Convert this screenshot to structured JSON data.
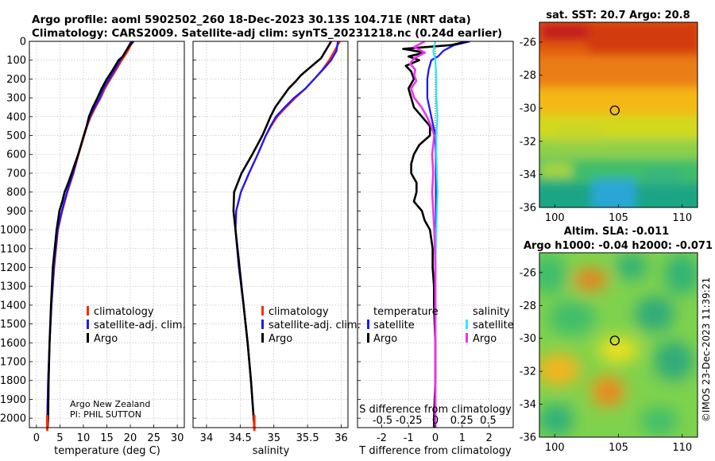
{
  "title": {
    "line1": "Argo profile: aoml 5902502_260 18-Dec-2023 30.13S 104.71E (NRT data)",
    "line2": "Climatology: CARS2009. Satellite-adj clim: synTS_20231218.nc (0.24d earlier)"
  },
  "credits": {
    "agency": "Argo New Zealand",
    "pi": "PI: PHIL SUTTON",
    "imos": "©IMOS 23-Dec-2023 11:39:21"
  },
  "colors": {
    "climatology": "#ff2a00",
    "satellite": "#1a1aff",
    "argo": "#000000",
    "sat_salinity": "#33e6f0",
    "argo_salinity": "#ee33ee",
    "marker": "#000000"
  },
  "legend": {
    "climatology": "climatology",
    "satellite_adj": "satellite-adj. clim.",
    "argo": "Argo",
    "temperature_hdr": "temperature",
    "salinity_hdr": "salinity",
    "satellite": "satellite"
  },
  "chart_data": [
    {
      "type": "line",
      "id": "temperature",
      "xlabel": "temperature (deg C)",
      "ylabel": "",
      "xlim": [
        -1.5,
        31.5
      ],
      "ylim": [
        2050,
        0
      ],
      "x_ticks": [
        0,
        5,
        10,
        15,
        20,
        25,
        30
      ],
      "y_ticks": [
        0,
        100,
        200,
        300,
        400,
        500,
        600,
        700,
        800,
        900,
        1000,
        1100,
        1200,
        1300,
        1400,
        1500,
        1600,
        1700,
        1800,
        1900,
        2000
      ],
      "series": [
        {
          "name": "climatology",
          "depth": [
            0,
            50,
            100,
            150,
            200,
            250,
            300,
            350,
            400,
            450,
            500,
            600,
            700,
            800,
            900,
            1000,
            1200,
            1400,
            1600,
            1800,
            2000,
            2050
          ],
          "values": [
            20.5,
            19.5,
            18.2,
            17.0,
            15.8,
            14.6,
            13.7,
            12.6,
            11.6,
            10.8,
            10.2,
            9.0,
            7.9,
            6.6,
            5.5,
            4.6,
            3.8,
            3.2,
            2.8,
            2.5,
            2.3,
            2.3
          ]
        },
        {
          "name": "satellite-adj. clim.",
          "depth": [
            0,
            50,
            100,
            150,
            200,
            250,
            300,
            350,
            400,
            450,
            500,
            600,
            700,
            800,
            900,
            1000,
            1200,
            1400,
            1600,
            1800,
            2000,
            2050
          ],
          "values": [
            20.2,
            19.1,
            17.9,
            16.7,
            15.5,
            14.3,
            13.5,
            12.4,
            11.4,
            10.7,
            10.1,
            8.9,
            7.8,
            6.5,
            5.4,
            4.5,
            3.7,
            3.2,
            2.8,
            2.5,
            2.3,
            2.3
          ]
        },
        {
          "name": "Argo",
          "depth": [
            0,
            20,
            50,
            80,
            100,
            150,
            200,
            250,
            300,
            350,
            400,
            450,
            500,
            550,
            600,
            650,
            700,
            750,
            800,
            850,
            900,
            1000,
            1100,
            1200,
            1400,
            1600,
            1800,
            2000,
            2050
          ],
          "values": [
            20.7,
            19.9,
            19.1,
            18.4,
            17.5,
            16.3,
            15.0,
            13.9,
            13.0,
            12.0,
            11.2,
            10.7,
            10.1,
            9.5,
            8.9,
            8.2,
            7.5,
            6.8,
            6.0,
            5.5,
            4.9,
            4.3,
            3.9,
            3.5,
            3.1,
            2.8,
            2.6,
            2.5,
            2.4
          ]
        }
      ]
    },
    {
      "type": "line",
      "id": "salinity",
      "xlabel": "salinity",
      "xlim": [
        33.8,
        36.1
      ],
      "ylim": [
        2050,
        0
      ],
      "x_ticks": [
        34,
        34.5,
        35,
        35.5,
        36
      ],
      "x_tick_labels": [
        "34",
        "34.5",
        "35",
        "35.5",
        "36"
      ],
      "series": [
        {
          "name": "climatology",
          "depth": [
            0,
            50,
            100,
            150,
            200,
            250,
            300,
            350,
            400,
            450,
            500,
            600,
            700,
            800,
            900,
            1000,
            1200,
            1400,
            1600,
            1800,
            2000,
            2050
          ],
          "values": [
            35.98,
            35.9,
            35.82,
            35.72,
            35.6,
            35.47,
            35.32,
            35.18,
            35.05,
            34.96,
            34.88,
            34.76,
            34.63,
            34.51,
            34.44,
            34.43,
            34.48,
            34.55,
            34.61,
            34.66,
            34.7,
            34.71
          ]
        },
        {
          "name": "satellite-adj. clim.",
          "depth": [
            0,
            50,
            100,
            150,
            200,
            250,
            300,
            350,
            400,
            450,
            500,
            600,
            700,
            800,
            900,
            1000,
            1200,
            1400,
            1600,
            1800,
            2000,
            2050
          ],
          "values": [
            35.95,
            35.93,
            35.85,
            35.73,
            35.6,
            35.47,
            35.3,
            35.16,
            35.03,
            34.95,
            34.88,
            34.76,
            34.63,
            34.51,
            34.44,
            34.43,
            34.48,
            34.55,
            34.61,
            34.66,
            34.7,
            34.71
          ]
        },
        {
          "name": "Argo",
          "depth": [
            0,
            30,
            60,
            90,
            120,
            150,
            180,
            210,
            250,
            300,
            350,
            400,
            450,
            500,
            600,
            700,
            800,
            900,
            1000,
            1100,
            1200,
            1400,
            1600,
            1800,
            2000,
            2050
          ],
          "values": [
            35.85,
            35.8,
            35.75,
            35.7,
            35.6,
            35.5,
            35.4,
            35.33,
            35.22,
            35.12,
            35.02,
            34.95,
            34.89,
            34.83,
            34.68,
            34.52,
            34.41,
            34.4,
            34.43,
            34.46,
            34.49,
            34.55,
            34.61,
            34.66,
            34.7,
            34.71
          ]
        }
      ]
    },
    {
      "type": "line",
      "id": "difference",
      "xlabel": "T difference from climatology",
      "xlabel2": "S difference from climatology",
      "xlim": [
        -2.9,
        2.9
      ],
      "ylim": [
        2050,
        0
      ],
      "x_ticks": [
        -2,
        -1,
        0,
        1,
        2
      ],
      "x2_ticks": [
        -0.5,
        -0.25,
        0,
        0.25,
        0.5
      ],
      "x2_tick_labels": [
        "-0.5",
        "-0.25",
        "0",
        "0.25",
        "0.5"
      ],
      "series": [
        {
          "name": "temperature satellite",
          "depth": [
            0,
            20,
            50,
            80,
            100,
            150,
            200,
            300,
            400,
            500,
            600,
            800,
            1000,
            1200,
            1600,
            2000,
            2050
          ],
          "values": [
            1.3,
            0.7,
            0.3,
            0.1,
            -0.15,
            -0.25,
            -0.3,
            -0.3,
            -0.15,
            0,
            0.02,
            0.02,
            0.02,
            0,
            0,
            0,
            0
          ]
        },
        {
          "name": "temperature Argo",
          "depth": [
            0,
            20,
            40,
            60,
            80,
            100,
            130,
            160,
            200,
            250,
            300,
            350,
            400,
            450,
            500,
            550,
            600,
            650,
            700,
            750,
            800,
            850,
            900,
            950,
            1000,
            1100,
            1200,
            1300,
            1400,
            1600,
            1800,
            2000,
            2050
          ],
          "values": [
            1.2,
            0.6,
            -1.2,
            -0.4,
            -1.0,
            -0.6,
            -1.1,
            -0.9,
            -0.8,
            -1.0,
            -0.9,
            -0.8,
            -0.5,
            -0.2,
            -0.2,
            -0.6,
            -0.8,
            -0.9,
            -0.9,
            -0.7,
            -0.7,
            -0.8,
            -0.5,
            -0.4,
            -0.2,
            -0.1,
            -0.1,
            -0.05,
            -0.05,
            0,
            0,
            -0.05,
            -0.05
          ]
        },
        {
          "name": "salinity satellite",
          "depth": [
            0,
            50,
            100,
            200,
            300,
            400,
            500,
            600,
            800,
            1000,
            1200,
            2000,
            2050
          ],
          "values": [
            0,
            -0.02,
            0,
            0.01,
            0.01,
            0.02,
            0.01,
            0.01,
            0.02,
            0.01,
            0,
            0,
            0
          ]
        },
        {
          "name": "salinity Argo",
          "depth": [
            0,
            30,
            60,
            90,
            120,
            150,
            180,
            210,
            250,
            300,
            350,
            400,
            450,
            500,
            600,
            700,
            800,
            900,
            1000,
            1200,
            1400,
            1600,
            1800,
            2000,
            2050
          ],
          "values": [
            -0.1,
            -0.2,
            -0.1,
            -0.2,
            -0.24,
            -0.19,
            -0.2,
            -0.18,
            -0.23,
            -0.2,
            -0.13,
            -0.08,
            -0.04,
            -0.01,
            -0.03,
            -0.02,
            -0.03,
            -0.02,
            -0.01,
            0,
            0,
            0,
            0,
            0,
            0
          ]
        }
      ]
    },
    {
      "type": "heatmap",
      "id": "sst_map",
      "title": "sat. SST: 20.7 Argo: 20.8",
      "xlim": [
        98.8,
        111.2
      ],
      "ylim": [
        -36,
        -24.8
      ],
      "x_ticks": [
        100,
        105,
        110
      ],
      "y_ticks": [
        -26,
        -28,
        -30,
        -32,
        -34,
        -36
      ],
      "argo_position": [
        104.71,
        -30.13
      ]
    },
    {
      "type": "heatmap",
      "id": "sla_map",
      "title": "Altim. SLA: -0.011",
      "subtitle": "Argo h1000: -0.04 h2000: -0.071",
      "xlim": [
        98.8,
        111.2
      ],
      "ylim": [
        -36,
        -24.8
      ],
      "x_ticks": [
        100,
        105,
        110
      ],
      "y_ticks": [
        -26,
        -28,
        -30,
        -32,
        -34,
        -36
      ],
      "argo_position": [
        104.71,
        -30.13
      ]
    }
  ]
}
